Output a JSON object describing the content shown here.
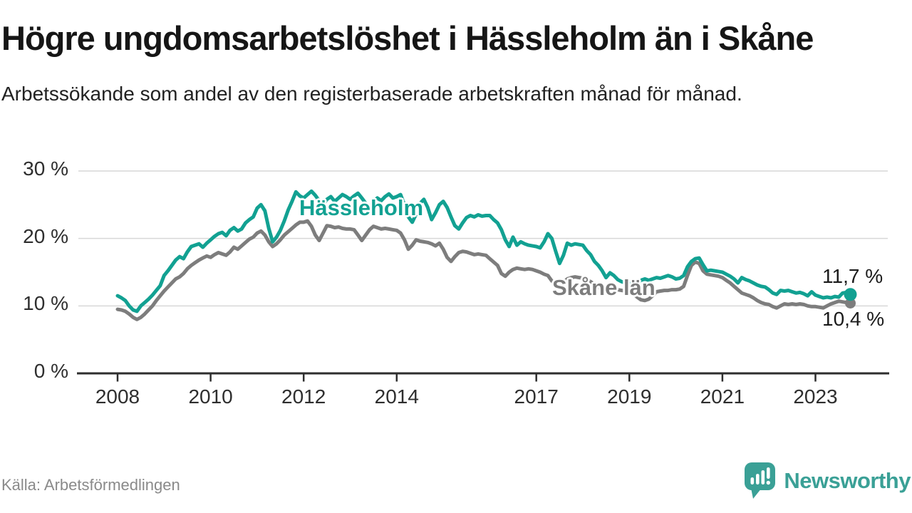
{
  "header": {
    "title": "Högre ungdomsarbetslöshet i Hässleholm än i Skåne",
    "subtitle": "Arbetssökande som andel av den registerbaserade arbetskraften månad för månad."
  },
  "chart_data": {
    "type": "line",
    "title": "Högre ungdomsarbetslöshet i Hässleholm än i Skåne",
    "subtitle": "Arbetssökande som andel av den registerbaserade arbetskraften månad för månad.",
    "frequency": "monthly",
    "x_start": "2008-01",
    "x_end": "2023-10",
    "ylim": [
      0,
      30
    ],
    "grid": "horizontal",
    "y_axis": {
      "ticks": [
        {
          "value": 0,
          "label": "0 %"
        },
        {
          "value": 10,
          "label": "10 %"
        },
        {
          "value": 20,
          "label": "20 %"
        },
        {
          "value": 30,
          "label": "30 %"
        }
      ]
    },
    "x_axis": {
      "ticks": [
        {
          "year": 2008,
          "label": "2008"
        },
        {
          "year": 2010,
          "label": "2010"
        },
        {
          "year": 2012,
          "label": "2012"
        },
        {
          "year": 2014,
          "label": "2014"
        },
        {
          "year": 2017,
          "label": "2017"
        },
        {
          "year": 2019,
          "label": "2019"
        },
        {
          "year": 2021,
          "label": "2021"
        },
        {
          "year": 2023,
          "label": "2023"
        }
      ]
    },
    "series": [
      {
        "name": "Hässleholm",
        "color": "#12a192",
        "end_label": "11,7 %",
        "last_value": 11.7,
        "values": [
          11.5,
          11.2,
          10.8,
          10,
          9.4,
          9.2,
          10,
          10.5,
          11,
          11.6,
          12.3,
          13,
          14.5,
          15.2,
          16,
          16.8,
          17.3,
          17,
          18,
          18.8,
          19,
          19.2,
          18.7,
          19.3,
          19.8,
          20.3,
          20.7,
          20.9,
          20.4,
          21.2,
          21.6,
          21.1,
          21.4,
          22.3,
          22.8,
          23.2,
          24.5,
          25,
          24.1,
          21.5,
          19.5,
          20.2,
          21.2,
          22.6,
          24.2,
          25.5,
          26.9,
          26.3,
          26,
          26.5,
          27,
          26.4,
          25.6,
          25,
          25.8,
          26.2,
          25.5,
          26,
          26.5,
          26.2,
          25.8,
          26.3,
          26.7,
          26,
          25.2,
          24.6,
          25.4,
          26,
          25.6,
          26.2,
          26.6,
          26,
          26.2,
          26.5,
          25,
          23.2,
          22.4,
          23.6,
          25.2,
          25.8,
          24.6,
          22.8,
          23.8,
          25,
          25.5,
          24.6,
          23.2,
          21.9,
          21.4,
          22.3,
          23.1,
          23.4,
          23.2,
          23.5,
          23.3,
          23.4,
          23.4,
          22.8,
          22.3,
          21.3,
          19.8,
          18.8,
          20.2,
          19,
          19.5,
          19.2,
          19,
          18.9,
          18.8,
          18.6,
          19.5,
          20.7,
          20,
          18.1,
          16.3,
          17.5,
          19.3,
          19,
          19.2,
          19.1,
          19,
          18.2,
          17.6,
          16.6,
          16,
          15.2,
          14.2,
          14.9,
          14.5,
          13.9,
          13.6,
          13.4,
          13.4,
          13.6,
          13.5,
          13.8,
          14,
          13.8,
          14,
          14.2,
          14.1,
          14.3,
          14.5,
          14.3,
          14,
          14.1,
          14.5,
          15.8,
          16.6,
          17,
          17.1,
          16.1,
          15.2,
          15.3,
          15.2,
          15.1,
          15,
          14.7,
          14.4,
          14,
          13.4,
          14.2,
          13.9,
          13.7,
          13.4,
          13.1,
          12.9,
          12.8,
          12.4,
          11.9,
          11.7,
          12.3,
          12.2,
          12.3,
          12.1,
          11.9,
          12,
          11.8,
          11.5,
          12.1,
          11.6,
          11.4,
          11.2,
          11.3,
          11.2,
          11.4,
          11.3,
          11.9,
          12,
          11.7
        ]
      },
      {
        "name": "Skåne län",
        "color": "#7d7d7d",
        "end_label": "10,4 %",
        "last_value": 10.4,
        "values": [
          9.5,
          9.4,
          9.2,
          8.8,
          8.3,
          8,
          8.3,
          8.8,
          9.4,
          10,
          10.8,
          11.5,
          12.2,
          12.8,
          13.4,
          14,
          14.3,
          14.8,
          15.5,
          16,
          16.4,
          16.8,
          17.1,
          17.4,
          17.2,
          17.6,
          17.9,
          17.7,
          17.5,
          18,
          18.7,
          18.4,
          18.9,
          19.4,
          19.9,
          20.2,
          20.8,
          21.1,
          20.5,
          19.5,
          18.8,
          19.2,
          19.8,
          20.5,
          21,
          21.5,
          22,
          22.4,
          22.4,
          22.6,
          21.8,
          20.5,
          19.7,
          20.8,
          21.9,
          21.8,
          21.6,
          21.7,
          21.5,
          21.4,
          21.4,
          21.3,
          20.5,
          19.7,
          20.5,
          21.3,
          21.8,
          21.6,
          21.4,
          21.5,
          21.4,
          21.3,
          21.2,
          20.8,
          19.8,
          18.4,
          19,
          19.8,
          19.6,
          19.5,
          19.4,
          19.2,
          18.9,
          19.3,
          18.4,
          17.2,
          16.6,
          17.3,
          17.9,
          18.1,
          18,
          17.8,
          17.6,
          17.7,
          17.6,
          17.5,
          17,
          16.5,
          16,
          14.8,
          14.4,
          15,
          15.4,
          15.6,
          15.5,
          15.4,
          15.5,
          15.4,
          15.2,
          15,
          14.7,
          14.5,
          13.7,
          13.2,
          13,
          13.5,
          14,
          14.2,
          14.3,
          14.2,
          14.1,
          13.9,
          13.6,
          13.2,
          12.8,
          12.4,
          12,
          12.3,
          12.5,
          12.4,
          12.3,
          12.2,
          12.1,
          11.8,
          11.3,
          10.9,
          10.8,
          11,
          11.5,
          12.1,
          12.2,
          12.3,
          12.3,
          12.4,
          12.4,
          12.5,
          12.9,
          14.5,
          16,
          16.5,
          16.3,
          15.2,
          14.7,
          14.6,
          14.5,
          14.4,
          14.2,
          13.8,
          13.4,
          12.9,
          12.4,
          11.9,
          11.7,
          11.5,
          11.2,
          10.8,
          10.5,
          10.3,
          10.2,
          9.9,
          9.7,
          10,
          10.3,
          10.2,
          10.3,
          10.2,
          10.3,
          10.2,
          10,
          9.9,
          9.9,
          9.8,
          9.7,
          10,
          10.3,
          10.5,
          10.7,
          10.6,
          10.5,
          10.4
        ]
      }
    ]
  },
  "colors": {
    "hassleholm": "#12a192",
    "skane": "#7d7d7d",
    "grid": "#d7d7d7",
    "axis": "#2e2e2e",
    "brand_teal": "#3aa096"
  },
  "footer": {
    "source": "Källa: Arbetsförmedlingen",
    "brand": "Newsworthy"
  }
}
